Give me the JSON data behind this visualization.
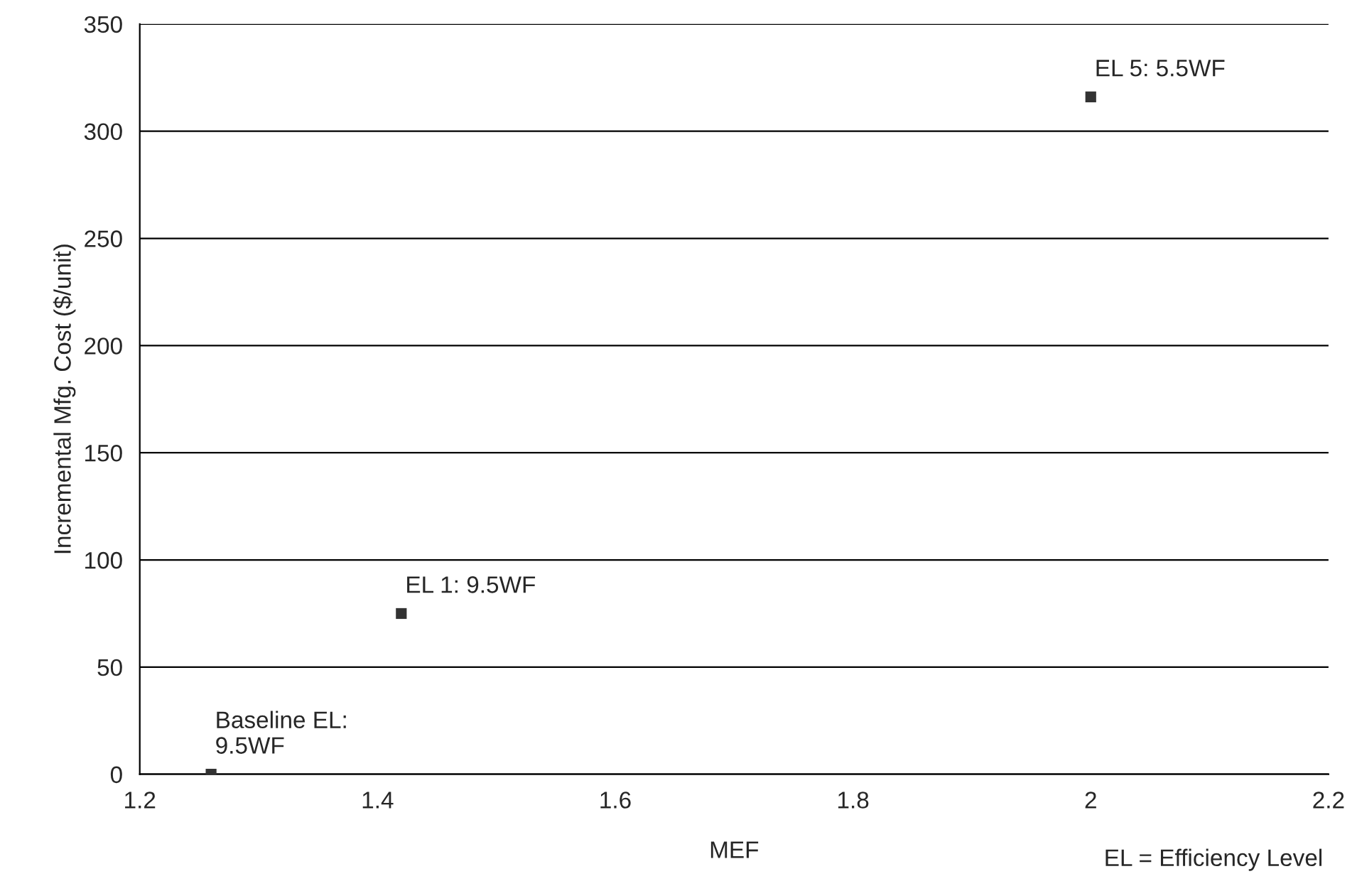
{
  "chart_data": {
    "type": "scatter",
    "xlabel": "MEF",
    "ylabel": "Incremental Mfg. Cost ($/unit)",
    "x": [
      1.26,
      1.42,
      2.0
    ],
    "series": [
      {
        "color": "#333333",
        "values": [
          0,
          75,
          316
        ]
      }
    ],
    "marker": "square",
    "grid": "y",
    "legend": false,
    "xlim": [
      1.2,
      2.2
    ],
    "xticks": [
      1.2,
      1.4,
      1.6,
      1.8,
      2,
      2.2
    ],
    "ylim": [
      0,
      350
    ],
    "yticks": [
      0,
      50,
      100,
      150,
      200,
      250,
      300,
      350
    ],
    "annotations": [
      {
        "text": "Baseline EL:\n9.5WF",
        "x": 1.26,
        "y": 0
      },
      {
        "text": "EL 1: 9.5WF",
        "x": 1.42,
        "y": 75
      },
      {
        "text": "EL 5: 5.5WF",
        "x": 2.0,
        "y": 316
      },
      "EL = Efficiency Level"
    ]
  }
}
